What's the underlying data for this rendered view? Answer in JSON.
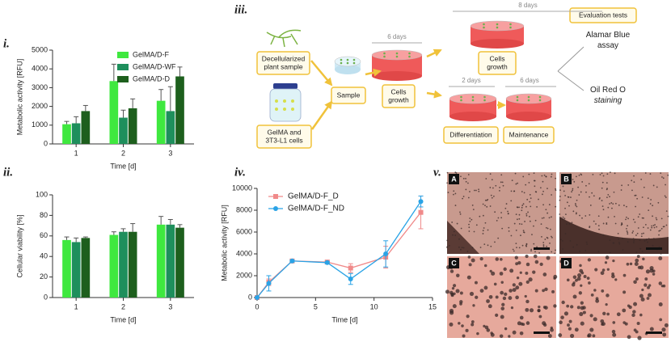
{
  "panel_labels": [
    "i.",
    "ii.",
    "iii.",
    "iv.",
    "v."
  ],
  "chart_data": [
    {
      "type": "bar",
      "categories": [
        "1",
        "2",
        "3"
      ],
      "series": [
        {
          "name": "GelMA/D-F",
          "color": "#3fe83f",
          "values": [
            1050,
            3350,
            2300
          ],
          "errors": [
            150,
            900,
            600
          ]
        },
        {
          "name": "GelMA/D-WF",
          "color": "#1e8f5c",
          "values": [
            1100,
            1400,
            1750
          ],
          "errors": [
            350,
            400,
            1300
          ]
        },
        {
          "name": "GelMA/D-D",
          "color": "#1d5f1d",
          "values": [
            1750,
            1900,
            3600
          ],
          "errors": [
            300,
            500,
            500
          ]
        }
      ],
      "ylim": [
        0,
        5000
      ],
      "yticks": [
        0,
        1000,
        2000,
        3000,
        4000,
        5000
      ],
      "xlabel": "Time [d]",
      "ylabel": "Metabolic activity [RFU]",
      "legend": "top-right"
    },
    {
      "type": "bar",
      "categories": [
        "1",
        "2",
        "3"
      ],
      "series": [
        {
          "color": "#3fe83f",
          "values": [
            56,
            61,
            71
          ],
          "errors": [
            3,
            3,
            8
          ]
        },
        {
          "color": "#1e8f5c",
          "values": [
            54,
            64,
            71
          ],
          "errors": [
            4,
            3,
            5
          ]
        },
        {
          "color": "#1d5f1d",
          "values": [
            58,
            64,
            68
          ],
          "errors": [
            1,
            8,
            3
          ]
        }
      ],
      "ylim": [
        0,
        100
      ],
      "yticks": [
        0,
        20,
        40,
        60,
        80,
        100
      ],
      "xlabel": "Time [d]",
      "ylabel": "Cellular viability [%]"
    },
    {
      "type": "line",
      "x": [
        0,
        1,
        3,
        6,
        8,
        11,
        14
      ],
      "series": [
        {
          "name": "GelMA/D-F_D",
          "color": "#f08a8a",
          "marker": "square",
          "values": [
            0,
            1400,
            3350,
            3250,
            2700,
            3700,
            7800
          ],
          "errors": [
            0,
            300,
            100,
            150,
            400,
            1000,
            1500
          ]
        },
        {
          "name": "GelMA/D-F_ND",
          "color": "#2aa3e6",
          "marker": "circle",
          "values": [
            0,
            1300,
            3350,
            3200,
            1700,
            4000,
            8800
          ],
          "errors": [
            0,
            700,
            100,
            100,
            500,
            1200,
            500
          ]
        }
      ],
      "xlim": [
        0,
        15
      ],
      "xticks": [
        0,
        5,
        10,
        15
      ],
      "ylim": [
        0,
        10000
      ],
      "yticks": [
        0,
        2000,
        4000,
        6000,
        8000,
        10000
      ],
      "xlabel": "Time [d]",
      "ylabel": "Metabolic activity [RFU]",
      "legend": "top-left"
    }
  ],
  "diagram": {
    "nodes": [
      {
        "lines": [
          "Decellularized",
          "plant sample"
        ]
      },
      {
        "lines": [
          "GelMA and",
          "3T3-L1 cells"
        ]
      },
      {
        "lines": [
          "Sample"
        ]
      },
      {
        "lines": [
          "Cells",
          "growth"
        ]
      },
      {
        "lines": [
          "Cells",
          "growth"
        ]
      },
      {
        "lines": [
          "Differentiation"
        ]
      },
      {
        "lines": [
          "Maintenance"
        ]
      },
      {
        "lines": [
          "Evaluation tests"
        ]
      },
      {
        "lines": [
          "Alamar Blue",
          "assay"
        ]
      },
      {
        "lines": [
          "Oil Red O",
          "staining"
        ]
      }
    ],
    "durations": [
      "6 days",
      "8 days",
      "2 days",
      "6 days"
    ]
  },
  "micrographs": {
    "labels": [
      "A",
      "B",
      "C",
      "D"
    ]
  }
}
